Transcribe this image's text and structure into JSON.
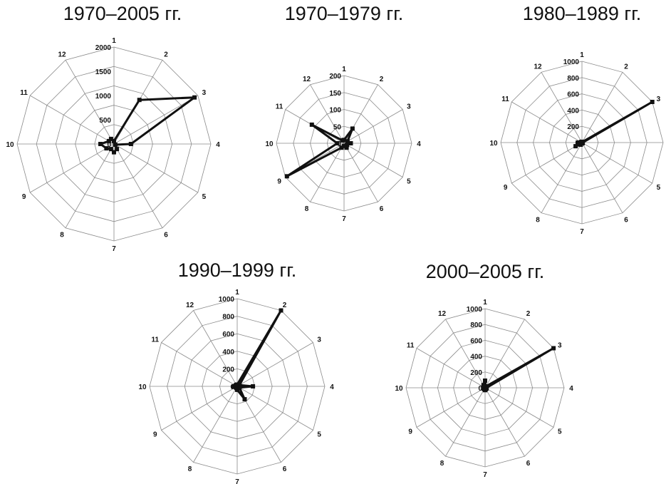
{
  "figure": {
    "background": "#ffffff",
    "grid_color": "#8a8a8a",
    "series_color": "#111111"
  },
  "chart_data": [
    {
      "type": "radar",
      "title": "1970–2005 гг.",
      "categories": [
        "1",
        "2",
        "3",
        "4",
        "5",
        "6",
        "7",
        "8",
        "9",
        "10",
        "11",
        "12"
      ],
      "ticks": [
        0,
        500,
        1000,
        1500,
        2000
      ],
      "tick_labels": [
        "0",
        "500",
        "1000",
        "1500",
        "2000"
      ],
      "ylim": [
        0,
        2000
      ],
      "grid_rings": 5,
      "series": [
        {
          "values": [
            60,
            1050,
            1920,
            350,
            30,
            120,
            170,
            120,
            180,
            280,
            120,
            120
          ]
        }
      ]
    },
    {
      "type": "radar",
      "title": "1970–1979 гг.",
      "categories": [
        "1",
        "2",
        "3",
        "4",
        "5",
        "6",
        "7",
        "8",
        "9",
        "10",
        "11",
        "12"
      ],
      "ticks": [
        0,
        50,
        100,
        150,
        200
      ],
      "tick_labels": [
        "0",
        "50",
        "100",
        "150",
        "200"
      ],
      "ylim": [
        0,
        200
      ],
      "grid_rings": 4,
      "series": [
        {
          "values": [
            10,
            50,
            12,
            20,
            10,
            15,
            8,
            15,
            195,
            20,
            110,
            10
          ]
        }
      ]
    },
    {
      "type": "radar",
      "title": "1980–1989 гг.",
      "categories": [
        "1",
        "2",
        "3",
        "4",
        "5",
        "6",
        "7",
        "8",
        "9",
        "10",
        "11",
        "12"
      ],
      "ticks": [
        0,
        200,
        400,
        600,
        800,
        1000
      ],
      "tick_labels": [
        "0",
        "200",
        "400",
        "600",
        "800",
        "1000"
      ],
      "ylim": [
        0,
        1000
      ],
      "grid_rings": 5,
      "series": [
        {
          "values": [
            10,
            10,
            1000,
            10,
            10,
            10,
            10,
            30,
            90,
            50,
            10,
            10
          ]
        }
      ]
    },
    {
      "type": "radar",
      "title": "1990–1999 гг.",
      "categories": [
        "1",
        "2",
        "3",
        "4",
        "5",
        "6",
        "7",
        "8",
        "9",
        "10",
        "11",
        "12"
      ],
      "ticks": [
        0,
        200,
        400,
        600,
        800,
        1000
      ],
      "tick_labels": [
        "0",
        "200",
        "400",
        "600",
        "800",
        "1000"
      ],
      "ylim": [
        0,
        1000
      ],
      "grid_rings": 5,
      "series": [
        {
          "values": [
            20,
            1000,
            30,
            180,
            30,
            170,
            40,
            20,
            20,
            40,
            20,
            20
          ]
        }
      ]
    },
    {
      "type": "radar",
      "title": "2000–2005 гг.",
      "categories": [
        "1",
        "2",
        "3",
        "4",
        "5",
        "6",
        "7",
        "8",
        "9",
        "10",
        "11",
        "12"
      ],
      "ticks": [
        0,
        200,
        400,
        600,
        800,
        1000
      ],
      "tick_labels": [
        "0",
        "200",
        "400",
        "600",
        "800",
        "1000"
      ],
      "ylim": [
        0,
        1000
      ],
      "grid_rings": 5,
      "series": [
        {
          "values": [
            90,
            20,
            1000,
            20,
            20,
            20,
            30,
            20,
            20,
            20,
            20,
            40
          ]
        }
      ]
    }
  ]
}
